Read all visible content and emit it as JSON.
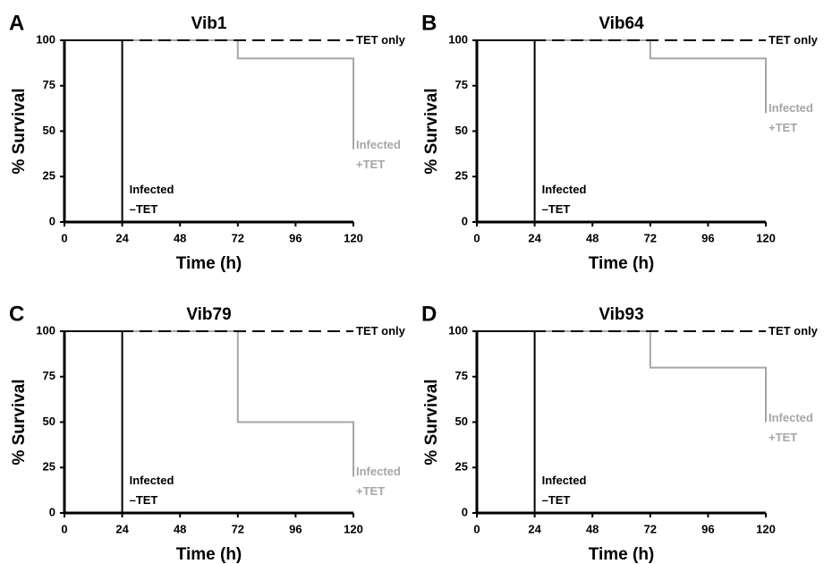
{
  "chart_data": [
    {
      "type": "line",
      "panel": "A",
      "title": "Vib1",
      "xlabel": "Time (h)",
      "ylabel": "% Survival",
      "xlim": [
        0,
        120
      ],
      "xticks": [
        0,
        24,
        48,
        72,
        96,
        120
      ],
      "ylim": [
        0,
        100
      ],
      "yticks": [
        0,
        25,
        50,
        75,
        100
      ],
      "series": [
        {
          "name": "TET only",
          "color": "#000000",
          "dashed": true,
          "x": [
            0,
            120
          ],
          "values": [
            100,
            100
          ]
        },
        {
          "name": "Infected +TET",
          "color": "#a6a6a6",
          "dashed": false,
          "x": [
            0,
            72,
            72,
            120,
            120
          ],
          "values": [
            100,
            100,
            90,
            90,
            40
          ]
        },
        {
          "name": "Infected –TET",
          "color": "#000000",
          "dashed": false,
          "x": [
            0,
            24,
            24
          ],
          "values": [
            100,
            100,
            0
          ]
        }
      ]
    },
    {
      "type": "line",
      "panel": "B",
      "title": "Vib64",
      "xlabel": "Time (h)",
      "ylabel": "% Survival",
      "xlim": [
        0,
        120
      ],
      "xticks": [
        0,
        24,
        48,
        72,
        96,
        120
      ],
      "ylim": [
        0,
        100
      ],
      "yticks": [
        0,
        25,
        50,
        75,
        100
      ],
      "series": [
        {
          "name": "TET only",
          "color": "#000000",
          "dashed": true,
          "x": [
            0,
            120
          ],
          "values": [
            100,
            100
          ]
        },
        {
          "name": "Infected +TET",
          "color": "#a6a6a6",
          "dashed": false,
          "x": [
            0,
            72,
            72,
            120,
            120
          ],
          "values": [
            100,
            100,
            90,
            90,
            60
          ]
        },
        {
          "name": "Infected –TET",
          "color": "#000000",
          "dashed": false,
          "x": [
            0,
            24,
            24
          ],
          "values": [
            100,
            100,
            0
          ]
        }
      ]
    },
    {
      "type": "line",
      "panel": "C",
      "title": "Vib79",
      "xlabel": "Time (h)",
      "ylabel": "% Survival",
      "xlim": [
        0,
        120
      ],
      "xticks": [
        0,
        24,
        48,
        72,
        96,
        120
      ],
      "ylim": [
        0,
        100
      ],
      "yticks": [
        0,
        25,
        50,
        75,
        100
      ],
      "series": [
        {
          "name": "TET only",
          "color": "#000000",
          "dashed": true,
          "x": [
            0,
            120
          ],
          "values": [
            100,
            100
          ]
        },
        {
          "name": "Infected +TET",
          "color": "#a6a6a6",
          "dashed": false,
          "x": [
            0,
            72,
            72,
            120,
            120
          ],
          "values": [
            100,
            100,
            50,
            50,
            20
          ]
        },
        {
          "name": "Infected –TET",
          "color": "#000000",
          "dashed": false,
          "x": [
            0,
            24,
            24
          ],
          "values": [
            100,
            100,
            0
          ]
        }
      ]
    },
    {
      "type": "line",
      "panel": "D",
      "title": "Vib93",
      "xlabel": "Time (h)",
      "ylabel": "% Survival",
      "xlim": [
        0,
        120
      ],
      "xticks": [
        0,
        24,
        48,
        72,
        96,
        120
      ],
      "ylim": [
        0,
        100
      ],
      "yticks": [
        0,
        25,
        50,
        75,
        100
      ],
      "series": [
        {
          "name": "TET only",
          "color": "#000000",
          "dashed": true,
          "x": [
            0,
            120
          ],
          "values": [
            100,
            100
          ]
        },
        {
          "name": "Infected +TET",
          "color": "#a6a6a6",
          "dashed": false,
          "x": [
            0,
            72,
            72,
            120,
            120
          ],
          "values": [
            100,
            100,
            80,
            80,
            50
          ]
        },
        {
          "name": "Infected –TET",
          "color": "#000000",
          "dashed": false,
          "x": [
            0,
            24,
            24
          ],
          "values": [
            100,
            100,
            0
          ]
        }
      ]
    }
  ]
}
